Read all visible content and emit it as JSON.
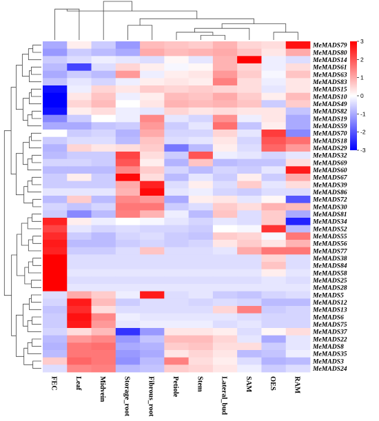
{
  "chart_data": {
    "type": "heatmap",
    "title": "",
    "xlabel": "",
    "ylabel": "",
    "columns": [
      "FEC",
      "Leaf",
      "Midvein",
      "Storage_root",
      "Fibrous_root",
      "Petiole",
      "Stem",
      "Lateral_bud",
      "SAM",
      "OES",
      "RAM"
    ],
    "rows": [
      "MeMADS79",
      "MeMADS80",
      "MeMADS14",
      "MeMADS61",
      "MeMADS63",
      "MeMADS83",
      "MeMADS15",
      "MeMADS10",
      "MeMADS49",
      "MeMADS82",
      "MeMADS19",
      "MeMADS59",
      "MeMADS70",
      "MeMADS18",
      "MeMADS29",
      "MeMADS32",
      "MeMADS69",
      "MeMADS60",
      "MeMADS67",
      "MeMADS39",
      "MeMADS86",
      "MeMADS72",
      "MeMADS30",
      "MeMADS81",
      "MeMADS34",
      "MeMADS52",
      "MeMADS55",
      "MeMADS56",
      "MeMADS77",
      "MeMADS38",
      "MeMADS84",
      "MeMADS58",
      "MeMADS25",
      "MeMADS28",
      "MeMADS5",
      "MeMADS12",
      "MeMADS13",
      "MeMADS6",
      "MeMADS75",
      "MeMADS37",
      "MeMADS22",
      "MeMADS8",
      "MeMADS35",
      "MeMADS3",
      "MeMADS24"
    ],
    "values": [
      [
        -1.0,
        0.2,
        -0.6,
        -1.2,
        0.8,
        0.7,
        0.6,
        0.9,
        0.5,
        0.4,
        2.8
      ],
      [
        -1.2,
        -0.6,
        -0.8,
        -1.0,
        1.0,
        0.8,
        0.9,
        1.0,
        0.7,
        0.3,
        1.0
      ],
      [
        -0.6,
        -0.4,
        -0.2,
        -0.3,
        -0.4,
        0.1,
        -0.3,
        0.9,
        3.0,
        -0.2,
        -0.4
      ],
      [
        -0.8,
        -2.2,
        -0.4,
        0.5,
        0.2,
        -0.1,
        0.1,
        0.9,
        0.5,
        -0.2,
        0.4
      ],
      [
        -1.0,
        -0.6,
        -0.8,
        1.2,
        -0.2,
        0.2,
        0.3,
        1.2,
        0.6,
        -0.1,
        0.7
      ],
      [
        -0.7,
        -0.3,
        -0.5,
        -0.2,
        0.2,
        0.3,
        0.2,
        1.5,
        0.4,
        -0.2,
        0.3
      ],
      [
        -2.8,
        -0.2,
        0.5,
        0.3,
        0.6,
        0.5,
        0.6,
        0.5,
        0.4,
        -0.3,
        0.3
      ],
      [
        -3.0,
        0.3,
        0.7,
        -0.2,
        0.2,
        0.8,
        0.7,
        1.0,
        0.6,
        0.2,
        0.8
      ],
      [
        -3.0,
        0.5,
        0.8,
        0.0,
        0.3,
        0.9,
        0.8,
        0.9,
        0.7,
        -0.6,
        0.6
      ],
      [
        -2.8,
        0.2,
        0.4,
        -0.2,
        -0.3,
        0.5,
        0.3,
        0.4,
        0.3,
        0.3,
        -0.7
      ],
      [
        -1.4,
        -0.6,
        0.0,
        -0.2,
        1.4,
        -0.3,
        -0.5,
        1.3,
        -0.2,
        0.3,
        -1.0
      ],
      [
        -1.0,
        -1.0,
        -0.7,
        -0.6,
        1.2,
        -0.6,
        -0.3,
        1.7,
        -0.7,
        0.2,
        -1.0
      ],
      [
        0.0,
        -0.6,
        -0.5,
        -0.9,
        1.0,
        -0.5,
        -0.5,
        0.5,
        -0.3,
        2.3,
        -1.4
      ],
      [
        -0.6,
        -0.4,
        -0.4,
        -0.8,
        0.7,
        -0.4,
        -0.3,
        0.3,
        -0.5,
        2.0,
        1.7
      ],
      [
        -0.9,
        0.5,
        0.3,
        0.4,
        0.6,
        -1.6,
        -0.8,
        0.2,
        -0.4,
        1.8,
        1.2
      ],
      [
        -0.8,
        -0.6,
        -0.6,
        2.2,
        0.4,
        -0.6,
        2.0,
        -0.2,
        -0.3,
        -0.5,
        -0.3
      ],
      [
        -0.5,
        -0.5,
        -0.6,
        2.0,
        0.2,
        -0.9,
        0.7,
        -0.8,
        -0.7,
        -0.7,
        0.4
      ],
      [
        -0.8,
        -0.8,
        -0.8,
        1.4,
        0.6,
        -0.5,
        -0.8,
        -0.5,
        -0.6,
        -0.3,
        2.7
      ],
      [
        -0.6,
        0.2,
        -0.6,
        2.9,
        0.4,
        -0.8,
        -0.3,
        -0.6,
        0.2,
        -0.6,
        1.0
      ],
      [
        -0.6,
        -0.6,
        -0.6,
        1.0,
        2.6,
        -0.4,
        0.2,
        -0.4,
        0.6,
        -0.3,
        0.4
      ],
      [
        -0.3,
        -0.3,
        -0.3,
        0.9,
        2.9,
        -0.3,
        -0.2,
        -0.5,
        -0.6,
        -0.4,
        -0.4
      ],
      [
        -0.8,
        0.6,
        -0.8,
        1.4,
        1.2,
        -1.0,
        0.2,
        0.3,
        -0.3,
        0.1,
        -2.0
      ],
      [
        -0.5,
        -0.7,
        -0.5,
        1.6,
        1.6,
        -0.6,
        -0.4,
        0.6,
        0.4,
        0.9,
        0.8
      ],
      [
        -0.6,
        -1.4,
        -0.8,
        1.5,
        0.9,
        -0.2,
        -0.8,
        0.7,
        -0.4,
        0.6,
        -1.0
      ],
      [
        2.6,
        0.2,
        -0.2,
        0.0,
        -0.1,
        -0.3,
        -0.5,
        -0.3,
        -0.4,
        0.6,
        -2.6
      ],
      [
        2.2,
        -0.3,
        -0.5,
        -0.4,
        -0.5,
        -0.5,
        -0.6,
        0.0,
        -0.1,
        2.4,
        -0.8
      ],
      [
        2.5,
        -0.6,
        -0.8,
        -0.5,
        -0.4,
        -0.6,
        -0.7,
        0.6,
        0.5,
        -0.1,
        1.6
      ],
      [
        2.7,
        -0.8,
        -0.8,
        -0.6,
        -0.5,
        -0.6,
        -0.5,
        0.3,
        0.6,
        0.3,
        0.9
      ],
      [
        2.6,
        -0.6,
        -0.6,
        -0.4,
        0.7,
        -0.4,
        -0.4,
        -0.3,
        1.0,
        1.6,
        1.6
      ],
      [
        3.0,
        -0.4,
        -0.4,
        -0.4,
        -0.4,
        -0.4,
        -0.4,
        -0.4,
        -0.4,
        0.5,
        -0.4
      ],
      [
        3.0,
        -0.4,
        -0.4,
        -0.4,
        -0.4,
        -0.4,
        -0.4,
        -0.4,
        -0.4,
        0.7,
        -0.4
      ],
      [
        3.0,
        -0.3,
        -0.3,
        -0.3,
        -0.3,
        -0.3,
        -0.3,
        -0.3,
        -0.3,
        0.2,
        -0.3
      ],
      [
        3.0,
        -0.4,
        -0.4,
        -0.4,
        -0.4,
        -0.4,
        -0.4,
        -0.4,
        -0.4,
        -0.3,
        -0.4
      ],
      [
        3.0,
        -0.3,
        -0.3,
        -0.3,
        -0.3,
        -0.3,
        -0.3,
        -0.3,
        -0.3,
        -0.3,
        -0.3
      ],
      [
        -0.4,
        1.0,
        0.6,
        -0.2,
        2.7,
        -0.4,
        -0.3,
        -0.6,
        -0.7,
        -0.5,
        -0.4
      ],
      [
        -0.5,
        2.7,
        0.8,
        -0.6,
        -0.4,
        -0.4,
        -0.5,
        -0.4,
        -0.5,
        -0.8,
        -0.8
      ],
      [
        -0.7,
        2.5,
        0.4,
        -0.4,
        -0.4,
        -0.4,
        -0.4,
        0.5,
        1.5,
        -0.6,
        -0.5
      ],
      [
        -0.6,
        2.8,
        1.4,
        -0.2,
        -0.3,
        -0.3,
        -0.3,
        -0.3,
        -0.4,
        -0.5,
        -0.5
      ],
      [
        -0.6,
        2.7,
        1.2,
        -0.3,
        -0.2,
        -0.2,
        -0.2,
        -0.4,
        -0.3,
        -0.5,
        -0.5
      ],
      [
        -0.5,
        0.4,
        0.8,
        -2.4,
        -1.2,
        0.3,
        0.3,
        0.2,
        -0.4,
        0.1,
        0.4
      ],
      [
        -0.8,
        1.2,
        1.4,
        -1.2,
        -0.7,
        0.8,
        0.8,
        0.5,
        -0.3,
        -1.0,
        -0.3
      ],
      [
        -0.9,
        1.6,
        1.7,
        -1.0,
        -0.9,
        0.6,
        0.7,
        0.4,
        0.4,
        -0.6,
        -0.3
      ],
      [
        -0.8,
        1.6,
        1.6,
        -1.2,
        -1.0,
        0.3,
        0.5,
        0.3,
        -0.8,
        -0.7,
        -0.2
      ],
      [
        0.6,
        1.8,
        1.6,
        -1.3,
        -0.8,
        1.5,
        0.4,
        0.2,
        -0.4,
        -0.9,
        -0.8
      ],
      [
        -0.4,
        1.4,
        1.5,
        -0.8,
        -0.7,
        0.6,
        0.5,
        0.3,
        -0.2,
        -0.6,
        -0.4
      ]
    ],
    "color_scale": {
      "min": -3,
      "max": 3,
      "colors": [
        "#0000ff",
        "#ffffff",
        "#ff0000"
      ],
      "ticks": [
        "3",
        "2",
        "1",
        "0",
        "-1",
        "-2",
        "-3"
      ]
    },
    "legend_placement": "top-right",
    "row_dendrogram": "left",
    "column_dendrogram": "top"
  }
}
